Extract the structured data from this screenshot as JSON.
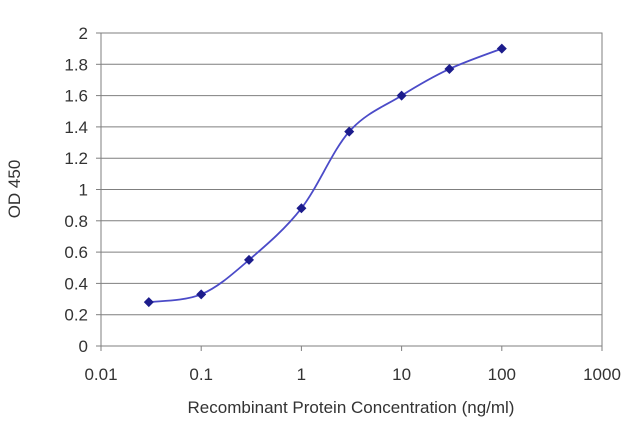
{
  "chart_data": {
    "type": "line",
    "title": "",
    "xlabel": "Recombinant Protein Concentration (ng/ml)",
    "ylabel": "OD 450",
    "x_scale": "log",
    "xlim": [
      0.01,
      1000
    ],
    "ylim": [
      0,
      2
    ],
    "x_ticks": [
      0.01,
      0.1,
      1,
      10,
      100,
      1000
    ],
    "x_tick_labels": [
      "0.01",
      "0.1",
      "1",
      "10",
      "100",
      "1000"
    ],
    "y_ticks": [
      0,
      0.2,
      0.4,
      0.6,
      0.8,
      1,
      1.2,
      1.4,
      1.6,
      1.8,
      2
    ],
    "y_tick_labels": [
      "0",
      "0.2",
      "0.4",
      "0.6",
      "0.8",
      "1",
      "1.2",
      "1.4",
      "1.6",
      "1.8",
      "2"
    ],
    "grid": "horizontal",
    "legend": "none",
    "series": [
      {
        "x": [
          0.03,
          0.1,
          0.3,
          1,
          3,
          10,
          30,
          100
        ],
        "y": [
          0.28,
          0.33,
          0.55,
          0.88,
          1.37,
          1.6,
          1.77,
          1.9
        ]
      }
    ],
    "colors": {
      "line": "#4b4bc8",
      "marker": "#1c1c8c",
      "grid": "#7f7f7f",
      "frame": "#7f7f7f",
      "text": "#333333"
    }
  }
}
